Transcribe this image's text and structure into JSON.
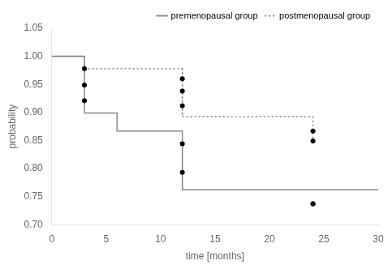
{
  "chart_data": {
    "type": "line",
    "xlabel": "time [months]",
    "ylabel": "probability",
    "xlim": [
      0,
      30
    ],
    "xticks": [
      0,
      5,
      10,
      15,
      20,
      25,
      30
    ],
    "ylim": [
      0.7,
      1.05
    ],
    "yticks": [
      {
        "value": 0.7,
        "label": "0.70"
      },
      0.75,
      {
        "value": 0.8,
        "label": "0.80"
      },
      0.85,
      {
        "value": 0.9,
        "label": "0.90"
      },
      0.95,
      {
        "value": 1.0,
        "label": "1.00"
      },
      1.05
    ],
    "grid": false,
    "legend": "upper right",
    "series": [
      {
        "name": "premenopausal group",
        "color": "#888888",
        "line_style": "solid",
        "x": [
          0,
          3,
          3,
          6,
          6,
          12,
          12,
          24,
          24,
          30
        ],
        "values": [
          1.0,
          1.0,
          0.899,
          0.899,
          0.867,
          0.867,
          0.762,
          0.762,
          0.762,
          0.762
        ]
      },
      {
        "name": "postmenopausal group",
        "color": "#888888",
        "line_style": "dotted",
        "x": [
          0,
          3,
          3,
          12,
          12,
          24,
          24
        ],
        "values": [
          1.0,
          1.0,
          0.978,
          0.978,
          0.893,
          0.893,
          0.893
        ]
      },
      {
        "color": "#888888",
        "line_style": "dotted",
        "x": [
          12,
          12
        ],
        "values": [
          0.978,
          0.893
        ]
      },
      {
        "color": "#888888",
        "line_style": "dotted",
        "x": [
          24,
          24
        ],
        "values": [
          0.893,
          0.849
        ]
      },
      {
        "type": "scatter",
        "color": "black",
        "marker": "circle",
        "x": [
          3,
          3,
          3,
          12,
          12,
          12,
          12,
          12,
          24,
          24,
          24
        ],
        "values": [
          0.978,
          0.949,
          0.921,
          0.96,
          0.938,
          0.912,
          0.844,
          0.793,
          0.867,
          0.849,
          0.737
        ]
      },
      {
        "type": "scatter",
        "color": "black",
        "marker": "circle",
        "x": [
          24
        ],
        "values": [
          0.737
        ]
      }
    ]
  }
}
